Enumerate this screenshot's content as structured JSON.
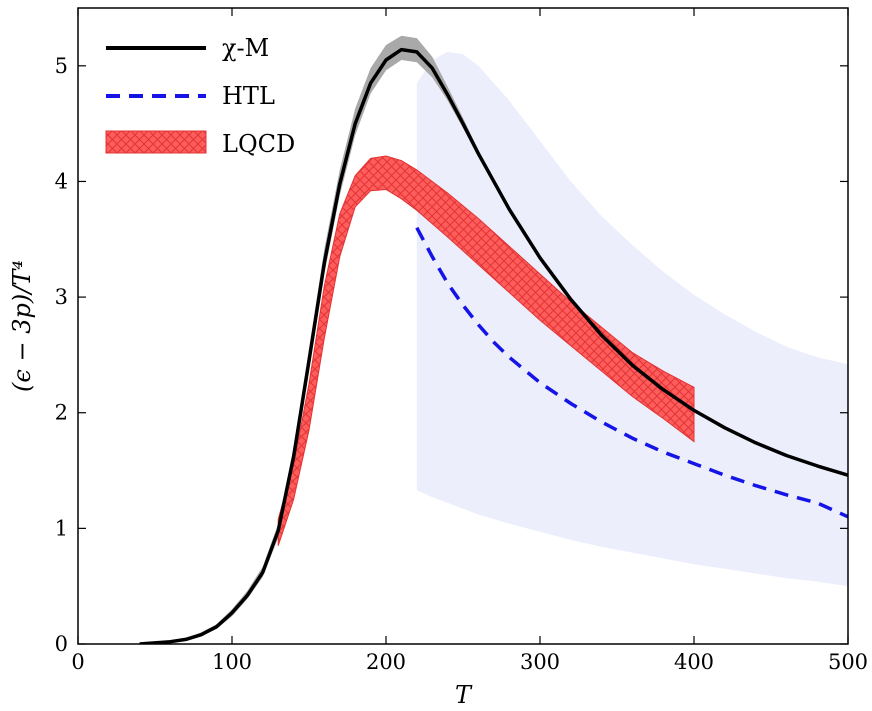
{
  "chart_data": {
    "type": "line",
    "xlabel": "T",
    "ylabel": "(ϵ − 3p)/T⁴",
    "xlim": [
      0,
      500
    ],
    "ylim": [
      0,
      5.5
    ],
    "xticks": [
      "0",
      "100",
      "200",
      "300",
      "400",
      "500"
    ],
    "yticks": [
      "0",
      "1",
      "2",
      "3",
      "4",
      "5"
    ],
    "grid": false,
    "legend_position": "top-left",
    "colors": {
      "chi_m": "#000000",
      "chi_m_band": "#a9a9a9",
      "htl": "#1414e6",
      "htl_band": "#eceefc",
      "lqcd": "#ff5c5c",
      "lqcd_hatch": "#e23434"
    },
    "series": [
      {
        "name": "χ-M",
        "style": "solid",
        "x": [
          40,
          60,
          70,
          80,
          90,
          100,
          110,
          120,
          130,
          140,
          150,
          160,
          170,
          180,
          190,
          200,
          210,
          220,
          230,
          240,
          250,
          260,
          280,
          300,
          320,
          340,
          360,
          380,
          400,
          420,
          440,
          460,
          480,
          500
        ],
        "y": [
          0.0,
          0.02,
          0.04,
          0.08,
          0.15,
          0.27,
          0.42,
          0.62,
          0.98,
          1.62,
          2.45,
          3.3,
          3.98,
          4.5,
          4.85,
          5.05,
          5.14,
          5.12,
          4.98,
          4.75,
          4.5,
          4.24,
          3.76,
          3.34,
          2.98,
          2.67,
          2.41,
          2.2,
          2.02,
          1.87,
          1.74,
          1.63,
          1.54,
          1.46
        ],
        "band_lower": [
          0.0,
          0.02,
          0.03,
          0.07,
          0.13,
          0.24,
          0.39,
          0.58,
          0.92,
          1.54,
          2.36,
          3.2,
          3.88,
          4.4,
          4.76,
          4.96,
          5.05,
          5.03,
          4.9,
          4.7,
          4.46,
          4.21,
          3.74,
          3.33,
          2.97,
          2.66,
          2.4,
          2.19,
          2.01,
          1.86,
          1.73,
          1.62,
          1.53,
          1.45
        ],
        "band_upper": [
          0.0,
          0.02,
          0.05,
          0.1,
          0.17,
          0.3,
          0.46,
          0.67,
          1.04,
          1.7,
          2.55,
          3.42,
          4.1,
          4.63,
          4.98,
          5.18,
          5.26,
          5.24,
          5.08,
          4.82,
          4.55,
          4.27,
          3.78,
          3.35,
          2.99,
          2.68,
          2.42,
          2.21,
          2.03,
          1.88,
          1.75,
          1.64,
          1.55,
          1.47
        ]
      },
      {
        "name": "HTL",
        "style": "dashed",
        "x": [
          220,
          230,
          240,
          250,
          260,
          270,
          280,
          300,
          320,
          340,
          360,
          380,
          400,
          420,
          440,
          460,
          480,
          500
        ],
        "y": [
          3.6,
          3.35,
          3.12,
          2.93,
          2.76,
          2.61,
          2.48,
          2.26,
          2.08,
          1.92,
          1.78,
          1.66,
          1.56,
          1.46,
          1.37,
          1.29,
          1.22,
          1.1
        ],
        "band_x": [
          220,
          230,
          240,
          250,
          260,
          280,
          300,
          320,
          340,
          360,
          380,
          400,
          420,
          440,
          460,
          480,
          500
        ],
        "band_lower": [
          1.33,
          1.27,
          1.22,
          1.17,
          1.12,
          1.04,
          0.97,
          0.9,
          0.84,
          0.79,
          0.74,
          0.69,
          0.65,
          0.61,
          0.57,
          0.54,
          0.5
        ],
        "band_upper": [
          4.85,
          5.05,
          5.12,
          5.1,
          5.0,
          4.7,
          4.35,
          4.0,
          3.7,
          3.45,
          3.22,
          3.02,
          2.85,
          2.7,
          2.57,
          2.48,
          2.42
        ]
      },
      {
        "name": "LQCD",
        "style": "hatched-band",
        "x": [
          130,
          140,
          150,
          160,
          170,
          180,
          190,
          200,
          210,
          220,
          240,
          260,
          280,
          300,
          320,
          340,
          360,
          380,
          400
        ],
        "band_lower": [
          0.85,
          1.25,
          1.85,
          2.65,
          3.35,
          3.78,
          3.92,
          3.93,
          3.85,
          3.75,
          3.52,
          3.28,
          3.04,
          2.8,
          2.58,
          2.36,
          2.14,
          1.95,
          1.75
        ],
        "band_upper": [
          1.08,
          1.55,
          2.25,
          3.1,
          3.72,
          4.05,
          4.2,
          4.22,
          4.18,
          4.1,
          3.9,
          3.68,
          3.44,
          3.2,
          2.96,
          2.74,
          2.52,
          2.36,
          2.22
        ]
      }
    ]
  }
}
